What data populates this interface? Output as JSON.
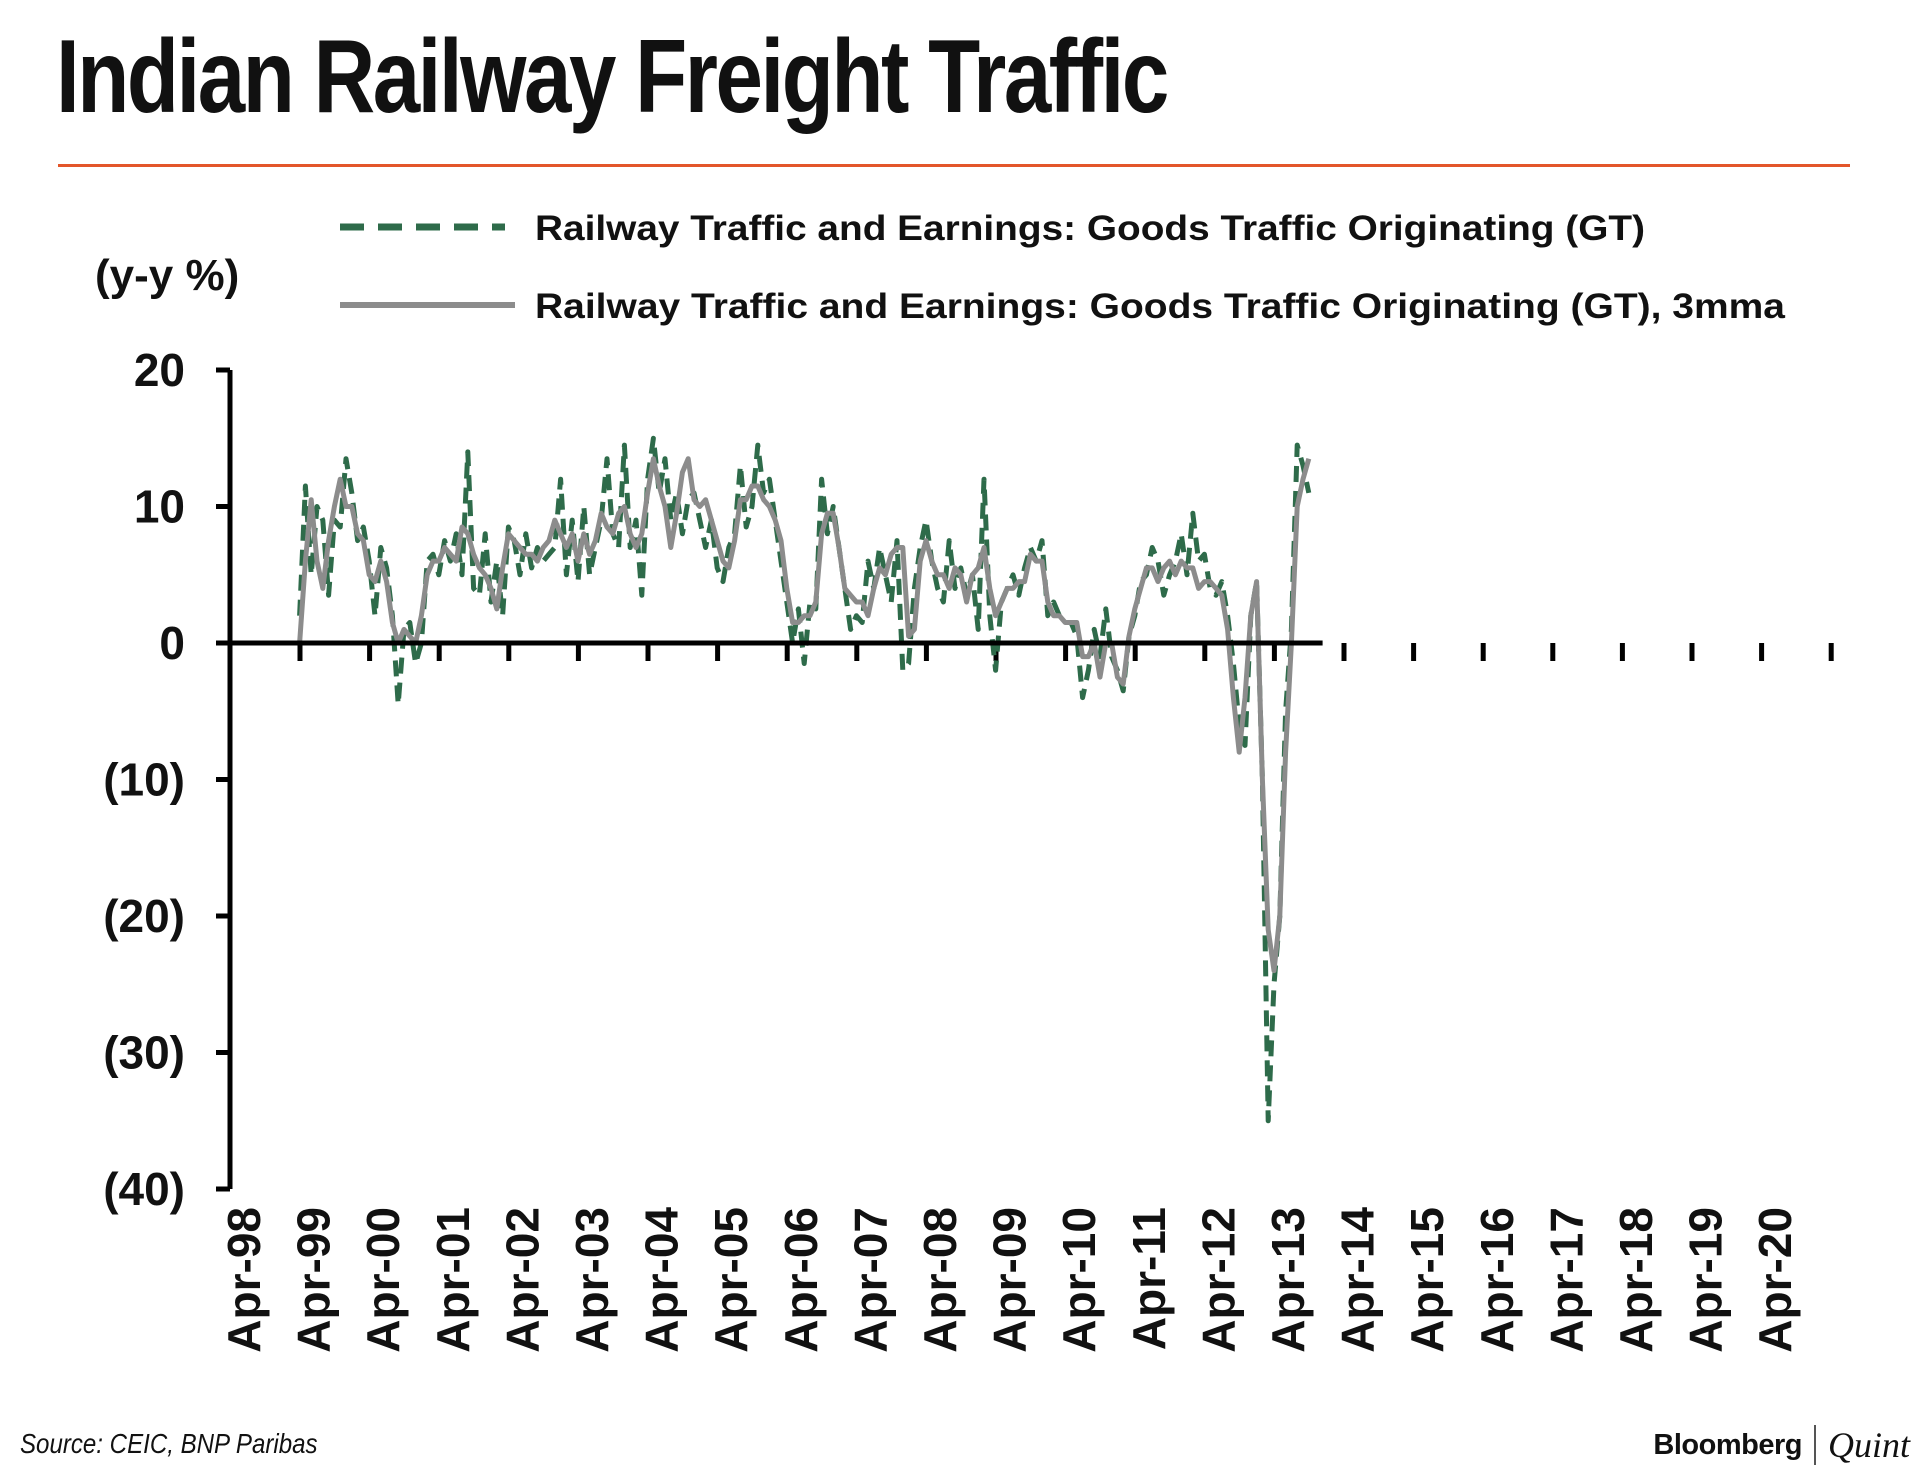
{
  "header": {
    "title": "Indian Railway Freight Traffic"
  },
  "footer": {
    "source": "Source: CEIC, BNP Paribas",
    "brand_primary": "Bloomberg",
    "brand_secondary": "Quint"
  },
  "colors": {
    "accent_rule": "#e3562a",
    "series_gt": "#2e6b4a",
    "series_3mma": "#8c8c8c",
    "axis": "#000000"
  },
  "chart_data": {
    "type": "line",
    "title": "Indian Railway Freight Traffic",
    "ylabel": "(y-y %)",
    "xlabel": "",
    "ylim": [
      -40,
      20
    ],
    "yticks": [
      20,
      10,
      0,
      -10,
      -20,
      -30,
      -40
    ],
    "ytick_labels": [
      "20",
      "10",
      "0",
      "(10)",
      "(20)",
      "(30)",
      "(40)"
    ],
    "x_start": "Apr-98",
    "x_end": "Dec-20",
    "xtick_labels": [
      "Apr-98",
      "Apr-99",
      "Apr-00",
      "Apr-01",
      "Apr-02",
      "Apr-03",
      "Apr-04",
      "Apr-05",
      "Apr-06",
      "Apr-07",
      "Apr-08",
      "Apr-09",
      "Apr-10",
      "Apr-11",
      "Apr-12",
      "Apr-13",
      "Apr-14",
      "Apr-15",
      "Apr-16",
      "Apr-17",
      "Apr-18",
      "Apr-19",
      "Apr-20"
    ],
    "legend_position": "top",
    "grid": false,
    "series": [
      {
        "name": "Railway Traffic and Earnings: Goods Traffic Originating (GT)",
        "style": "dashed",
        "color": "#2e6b4a",
        "values": [
          2,
          11.5,
          5,
          10,
          9,
          3.5,
          9,
          8.5,
          13.5,
          11,
          7.5,
          8.5,
          6,
          2,
          7,
          5.5,
          2,
          -4.5,
          1,
          1.5,
          -1.5,
          0,
          6,
          6.5,
          5,
          7.5,
          6,
          8,
          5,
          14,
          4,
          3.5,
          8,
          3,
          6,
          2,
          8.5,
          7.5,
          5,
          8,
          5.5,
          7,
          6,
          6.5,
          7,
          12,
          5,
          9,
          4.5,
          10,
          5,
          7,
          9,
          13.5,
          8,
          7,
          14.5,
          7,
          9,
          3.5,
          12,
          15,
          11,
          13.5,
          9,
          11,
          8,
          10.5,
          11,
          9,
          7,
          9,
          5.5,
          4.5,
          7,
          8,
          13,
          8.5,
          10,
          14.5,
          11,
          12,
          9,
          6,
          3,
          0,
          2.5,
          -1.5,
          3,
          2.5,
          12,
          8,
          10,
          7,
          4,
          1,
          2,
          1.5,
          6,
          4,
          7,
          5,
          3,
          7.5,
          -2,
          -1.5,
          4,
          7,
          9,
          6,
          4,
          3,
          7.5,
          4,
          5.5,
          3.5,
          5,
          1,
          12,
          2,
          -2,
          3,
          4,
          5,
          3.5,
          5.5,
          7,
          6,
          7.5,
          2,
          3,
          2,
          1.5,
          1.5,
          0.5,
          -4,
          -2,
          1,
          -1,
          2.5,
          -1,
          -2,
          -3.5,
          0.5,
          2,
          4.5,
          5,
          7,
          6,
          3.5,
          5,
          6,
          8,
          5,
          9.5,
          6,
          6.5,
          4,
          3.5,
          4.5,
          2,
          -1.5,
          -6,
          -7.5,
          2,
          4.5,
          -10,
          -35,
          -25,
          -20,
          -5,
          1,
          14.5,
          13,
          11
        ]
      },
      {
        "name": "Railway Traffic and Earnings: Goods Traffic Originating (GT), 3mma",
        "style": "solid",
        "color": "#8c8c8c",
        "values": [
          0,
          6,
          10.5,
          6,
          4,
          7.5,
          10,
          12,
          10,
          10,
          8,
          7.5,
          5,
          4.5,
          6,
          4.5,
          1.5,
          0,
          1,
          0.5,
          0,
          2,
          5,
          6,
          6,
          7,
          6.5,
          6,
          8.5,
          8,
          6.5,
          5.5,
          5,
          4,
          2.5,
          5.5,
          8,
          7.5,
          7,
          6.5,
          6.5,
          6,
          7,
          7.5,
          9,
          8,
          7,
          8,
          6,
          8,
          6.5,
          7.5,
          9.5,
          8.5,
          8,
          9.5,
          10,
          8,
          7,
          8,
          11,
          13.5,
          11.5,
          10,
          7,
          9.5,
          12.5,
          13.5,
          10.5,
          10,
          10.5,
          9,
          7.5,
          6,
          5.5,
          7.5,
          10.5,
          10.5,
          11.5,
          11.5,
          10.5,
          10,
          9,
          7.5,
          4,
          1.5,
          1.5,
          2,
          2,
          3,
          8,
          9.5,
          9.5,
          7,
          4,
          3.5,
          3,
          3,
          2,
          4,
          5.5,
          5,
          6.5,
          7,
          7,
          0.5,
          1,
          6,
          7.5,
          6,
          5,
          5,
          4,
          5.5,
          5,
          3,
          5,
          5.5,
          7,
          4,
          2,
          3,
          4,
          4,
          4.5,
          4.5,
          6.5,
          6,
          6,
          3,
          2,
          2,
          1.5,
          1.5,
          1.5,
          -1,
          -1,
          0,
          -2.5,
          0,
          0,
          -2.5,
          -3,
          0.5,
          2.5,
          4,
          5.5,
          5.5,
          4.5,
          5.5,
          6,
          5,
          6,
          5.5,
          5.5,
          4,
          4.5,
          4.5,
          4,
          3.5,
          1,
          -4,
          -8,
          -4,
          2,
          4.5,
          -10,
          -21,
          -24,
          -20,
          -8,
          0,
          10,
          12,
          13.5
        ]
      }
    ]
  }
}
